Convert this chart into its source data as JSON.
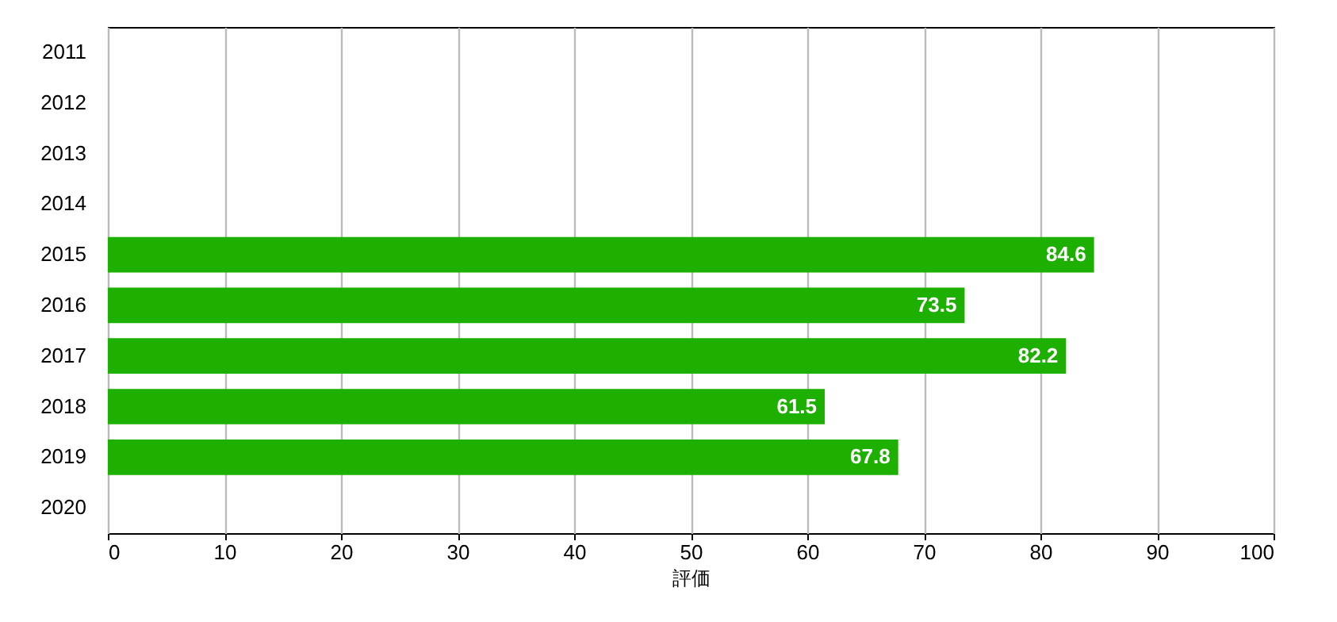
{
  "chart_data": {
    "type": "bar",
    "orientation": "horizontal",
    "xlabel": "評価",
    "categories": [
      "2011",
      "2012",
      "2013",
      "2014",
      "2015",
      "2016",
      "2017",
      "2018",
      "2019",
      "2020"
    ],
    "values": [
      null,
      null,
      null,
      null,
      84.6,
      73.5,
      82.2,
      61.5,
      67.8,
      null
    ],
    "color": "#1eb000",
    "xlim": [
      0,
      100
    ],
    "xticks": [
      0,
      10,
      20,
      30,
      40,
      50,
      60,
      70,
      80,
      90,
      100
    ],
    "grid": "x",
    "data_labels": true
  }
}
